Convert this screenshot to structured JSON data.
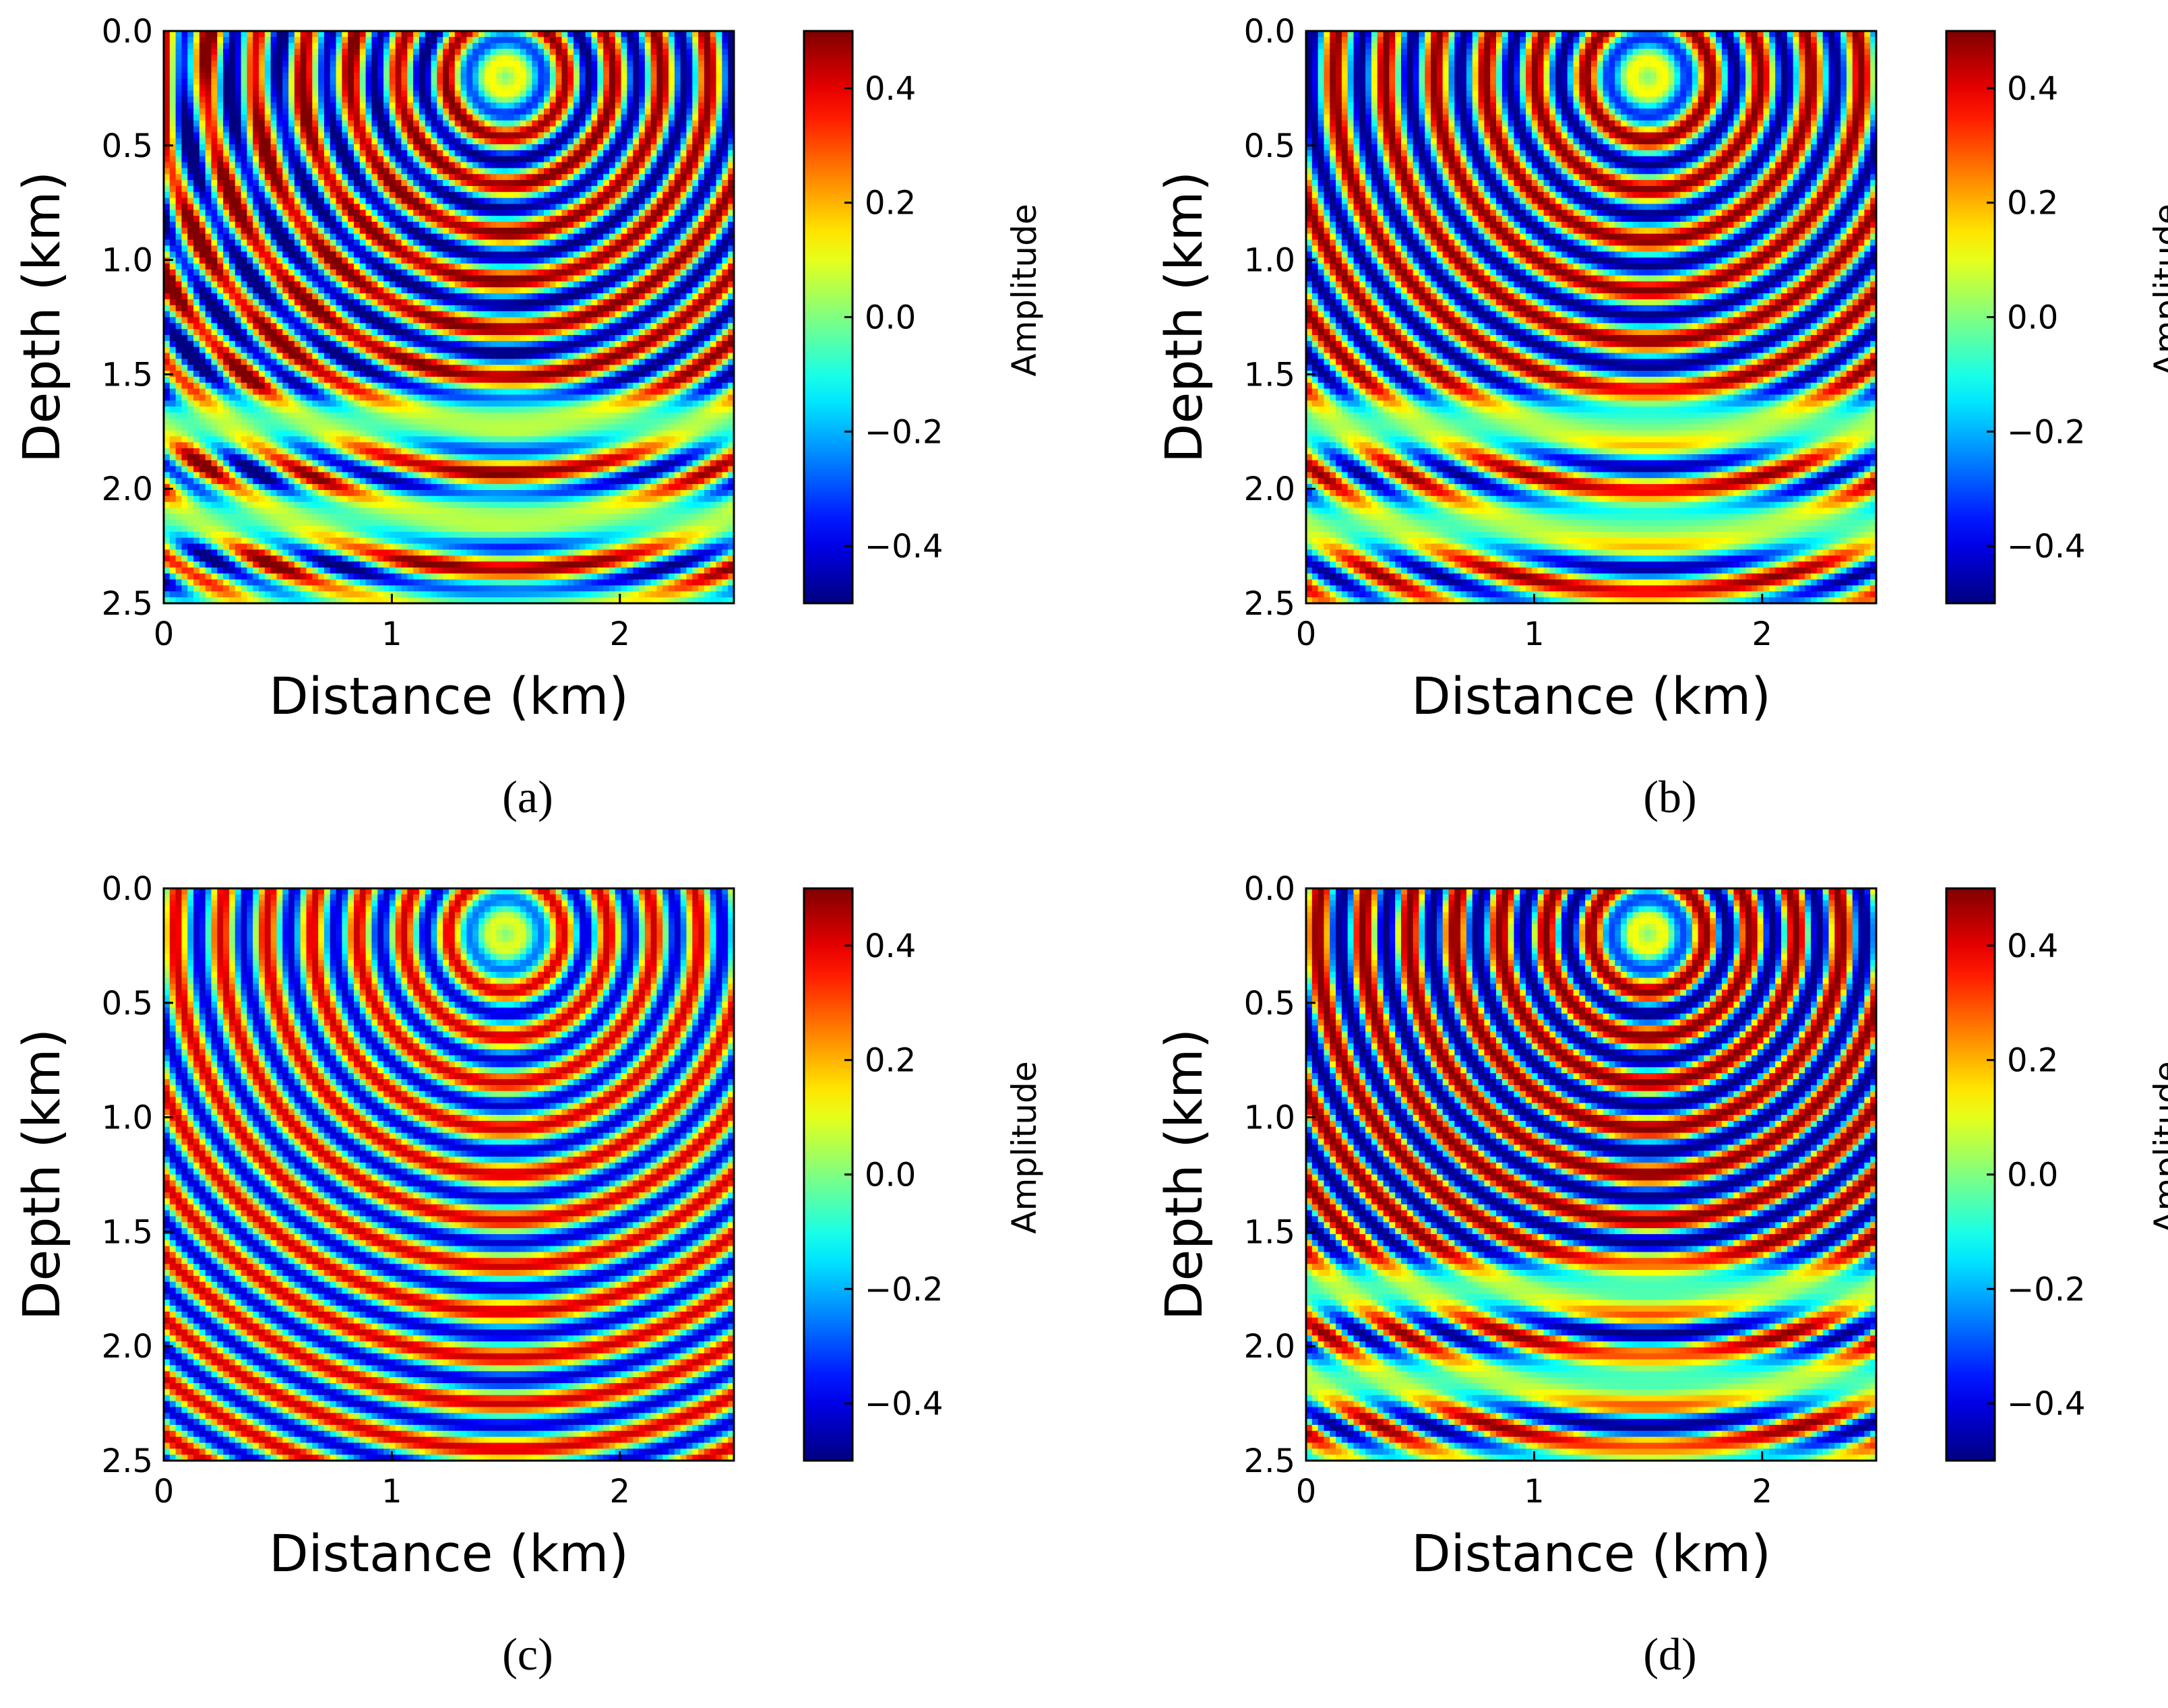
{
  "chart_data": [
    {
      "panel": "(a)",
      "type": "heatmap",
      "title": "",
      "xlabel": "Distance (km)",
      "ylabel": "Depth (km)",
      "xlim": [
        0,
        2.5
      ],
      "ylim": [
        2.5,
        0.0
      ],
      "xticks": [
        0,
        1,
        2
      ],
      "xtick_labels": [
        "0",
        "1",
        "2"
      ],
      "yticks": [
        0.0,
        0.5,
        1.0,
        1.5,
        2.0,
        2.5
      ],
      "ytick_labels": [
        "0.0",
        "0.5",
        "1.0",
        "1.5",
        "2.0",
        "2.5"
      ],
      "colorbar": {
        "label": "Amplitude",
        "range": [
          -0.5,
          0.5
        ],
        "ticks": [
          0.4,
          0.2,
          0.0,
          -0.2,
          -0.4
        ],
        "tick_labels": [
          "0.4",
          "0.2",
          "0.0",
          "−0.2",
          "−0.4"
        ],
        "colormap": "jet"
      },
      "field": {
        "source_x_km": 1.5,
        "source_z_km": 0.2,
        "wavelength_km": 0.21,
        "amplitude": 0.5,
        "layer_depth_km": 1.5,
        "description_variant": "noisy"
      }
    },
    {
      "panel": "(b)",
      "type": "heatmap",
      "title": "",
      "xlabel": "Distance (km)",
      "ylabel": "Depth (km)",
      "xlim": [
        0,
        2.5
      ],
      "ylim": [
        2.5,
        0.0
      ],
      "xticks": [
        0,
        1,
        2
      ],
      "xtick_labels": [
        "0",
        "1",
        "2"
      ],
      "yticks": [
        0.0,
        0.5,
        1.0,
        1.5,
        2.0,
        2.5
      ],
      "ytick_labels": [
        "0.0",
        "0.5",
        "1.0",
        "1.5",
        "2.0",
        "2.5"
      ],
      "colorbar": {
        "label": "Amplitude",
        "range": [
          -0.5,
          0.5
        ],
        "ticks": [
          0.4,
          0.2,
          0.0,
          -0.2,
          -0.4
        ],
        "tick_labels": [
          "0.4",
          "0.2",
          "0.0",
          "−0.2",
          "−0.4"
        ],
        "colormap": "jet"
      },
      "field": {
        "source_x_km": 1.5,
        "source_z_km": 0.2,
        "wavelength_km": 0.22,
        "amplitude": 0.5,
        "layer_depth_km": 1.5,
        "description_variant": "smooth"
      }
    },
    {
      "panel": "(c)",
      "type": "heatmap",
      "title": "",
      "xlabel": "Distance (km)",
      "ylabel": "Depth (km)",
      "xlim": [
        0,
        2.5
      ],
      "ylim": [
        2.5,
        0.0
      ],
      "xticks": [
        0,
        1,
        2
      ],
      "xtick_labels": [
        "0",
        "1",
        "2"
      ],
      "yticks": [
        0.0,
        0.5,
        1.0,
        1.5,
        2.0,
        2.5
      ],
      "ytick_labels": [
        "0.0",
        "0.5",
        "1.0",
        "1.5",
        "2.0",
        "2.5"
      ],
      "colorbar": {
        "label": "Amplitude",
        "range": [
          -0.5,
          0.5
        ],
        "ticks": [
          0.4,
          0.2,
          0.0,
          -0.2,
          -0.4
        ],
        "tick_labels": [
          "0.4",
          "0.2",
          "0.0",
          "−0.2",
          "−0.4"
        ],
        "colormap": "jet"
      },
      "field": {
        "source_x_km": 1.5,
        "source_z_km": 0.2,
        "wavelength_km": 0.2,
        "amplitude": 0.5,
        "layer_depth_km": 3.0,
        "description_variant": "homogeneous"
      }
    },
    {
      "panel": "(d)",
      "type": "heatmap",
      "title": "",
      "xlabel": "Distance (km)",
      "ylabel": "Depth (km)",
      "xlim": [
        0,
        2.5
      ],
      "ylim": [
        2.5,
        0.0
      ],
      "xticks": [
        0,
        1,
        2
      ],
      "xtick_labels": [
        "0",
        "1",
        "2"
      ],
      "yticks": [
        0.0,
        0.5,
        1.0,
        1.5,
        2.0,
        2.5
      ],
      "ytick_labels": [
        "0.0",
        "0.5",
        "1.0",
        "1.5",
        "2.0",
        "2.5"
      ],
      "colorbar": {
        "label": "Amplitude",
        "range": [
          -0.5,
          0.5
        ],
        "ticks": [
          0.4,
          0.2,
          0.0,
          -0.2,
          -0.4
        ],
        "tick_labels": [
          "0.4",
          "0.2",
          "0.0",
          "−0.2",
          "−0.4"
        ],
        "colormap": "jet"
      },
      "field": {
        "source_x_km": 1.5,
        "source_z_km": 0.2,
        "wavelength_km": 0.2,
        "amplitude": 0.5,
        "layer_depth_km": 1.55,
        "description_variant": "sharp"
      }
    }
  ]
}
